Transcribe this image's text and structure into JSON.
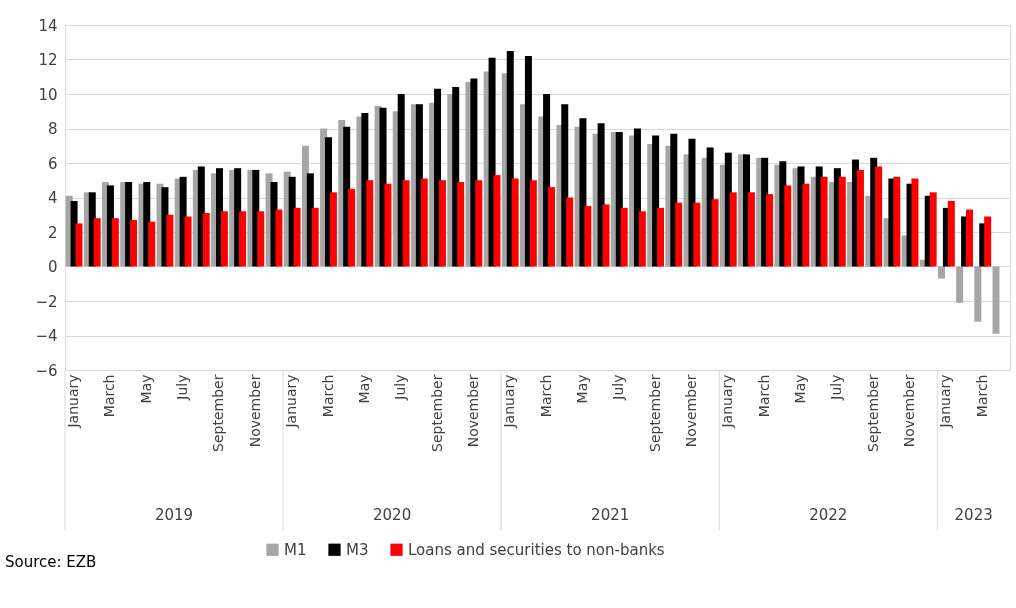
{
  "chart_data": {
    "type": "bar",
    "categories": [
      "January",
      null,
      "March",
      null,
      "May",
      null,
      "July",
      null,
      "September",
      null,
      "November",
      null,
      "January",
      null,
      "March",
      null,
      "May",
      null,
      "July",
      null,
      "September",
      null,
      "November",
      null,
      "January",
      null,
      "March",
      null,
      "May",
      null,
      "July",
      null,
      "September",
      null,
      "November",
      null,
      "January",
      null,
      "March",
      null,
      "May",
      null,
      "July",
      null,
      "September",
      null,
      "November",
      null,
      "January",
      null,
      "March",
      null
    ],
    "series": [
      {
        "name": "M1",
        "color": "#a6a6a6",
        "values": [
          4.1,
          4.3,
          4.9,
          4.9,
          4.8,
          4.8,
          5.1,
          5.6,
          5.4,
          5.6,
          5.6,
          5.4,
          5.5,
          7.0,
          8.0,
          8.5,
          8.7,
          9.3,
          9.0,
          9.4,
          9.5,
          10.0,
          10.7,
          11.3,
          11.2,
          9.4,
          8.7,
          8.2,
          8.1,
          7.7,
          7.8,
          7.6,
          7.1,
          7.0,
          6.5,
          6.3,
          5.9,
          6.5,
          6.3,
          5.9,
          5.7,
          5.2,
          4.9,
          4.9,
          4.1,
          2.8,
          1.8,
          0.4,
          -0.7,
          -2.1,
          -3.2,
          -3.9
        ]
      },
      {
        "name": "M3",
        "color": "#000000",
        "values": [
          3.8,
          4.3,
          4.7,
          4.9,
          4.9,
          4.6,
          5.2,
          5.8,
          5.7,
          5.7,
          5.6,
          4.9,
          5.2,
          5.4,
          7.5,
          8.1,
          8.9,
          9.2,
          10.0,
          9.4,
          10.3,
          10.4,
          10.9,
          12.1,
          12.5,
          12.2,
          10.0,
          9.4,
          8.6,
          8.3,
          7.8,
          8.0,
          7.6,
          7.7,
          7.4,
          6.9,
          6.6,
          6.5,
          6.3,
          6.1,
          5.8,
          5.8,
          5.7,
          6.2,
          6.3,
          5.1,
          4.8,
          4.1,
          3.4,
          2.9,
          2.5,
          null
        ]
      },
      {
        "name": "Loans and securities to non-banks",
        "color": "#ff0000",
        "values": [
          2.5,
          2.8,
          2.8,
          2.7,
          2.6,
          3.0,
          2.9,
          3.1,
          3.2,
          3.2,
          3.2,
          3.3,
          3.4,
          3.4,
          4.3,
          4.5,
          5.0,
          4.8,
          5.0,
          5.1,
          5.0,
          4.9,
          5.0,
          5.3,
          5.1,
          5.0,
          4.6,
          4.0,
          3.5,
          3.6,
          3.4,
          3.2,
          3.4,
          3.7,
          3.7,
          3.9,
          4.3,
          4.3,
          4.2,
          4.7,
          4.8,
          5.2,
          5.2,
          5.6,
          5.8,
          5.2,
          5.1,
          4.3,
          3.8,
          3.3,
          2.9,
          null
        ]
      }
    ],
    "ylim": [
      -6,
      14
    ],
    "yticks": [
      -6,
      -4,
      -2,
      0,
      2,
      4,
      6,
      8,
      10,
      12,
      14
    ],
    "grid": "y",
    "legend": "bottom",
    "annotations": [
      "Source: EZB",
      "2019",
      "2020",
      "2021",
      "2022",
      "2023"
    ]
  }
}
